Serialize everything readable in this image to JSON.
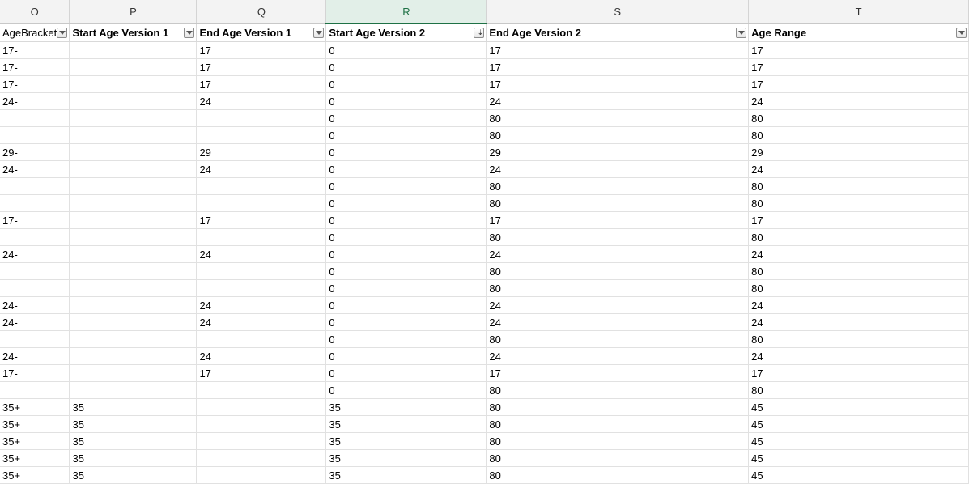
{
  "columns": [
    {
      "letter": "O",
      "header": "AgeBracket",
      "bold": false,
      "filter": "dropdown",
      "active": false
    },
    {
      "letter": "P",
      "header": "Start Age Version 1",
      "bold": true,
      "filter": "dropdown",
      "active": false
    },
    {
      "letter": "Q",
      "header": "End Age Version 1",
      "bold": true,
      "filter": "dropdown",
      "active": false
    },
    {
      "letter": "R",
      "header": "Start Age Version 2",
      "bold": true,
      "filter": "sort-descending",
      "active": true
    },
    {
      "letter": "S",
      "header": "End Age Version 2",
      "bold": true,
      "filter": "dropdown",
      "active": false
    },
    {
      "letter": "T",
      "header": "Age Range",
      "bold": true,
      "filter": "dropdown",
      "active": false
    }
  ],
  "rows": [
    [
      "17-",
      "",
      "17",
      "0",
      "17",
      "17"
    ],
    [
      "17-",
      "",
      "17",
      "0",
      "17",
      "17"
    ],
    [
      "17-",
      "",
      "17",
      "0",
      "17",
      "17"
    ],
    [
      "24-",
      "",
      "24",
      "0",
      "24",
      "24"
    ],
    [
      "",
      "",
      "",
      "0",
      "80",
      "80"
    ],
    [
      "",
      "",
      "",
      "0",
      "80",
      "80"
    ],
    [
      "29-",
      "",
      "29",
      "0",
      "29",
      "29"
    ],
    [
      "24-",
      "",
      "24",
      "0",
      "24",
      "24"
    ],
    [
      "",
      "",
      "",
      "0",
      "80",
      "80"
    ],
    [
      "",
      "",
      "",
      "0",
      "80",
      "80"
    ],
    [
      "17-",
      "",
      "17",
      "0",
      "17",
      "17"
    ],
    [
      "",
      "",
      "",
      "0",
      "80",
      "80"
    ],
    [
      "24-",
      "",
      "24",
      "0",
      "24",
      "24"
    ],
    [
      "",
      "",
      "",
      "0",
      "80",
      "80"
    ],
    [
      "",
      "",
      "",
      "0",
      "80",
      "80"
    ],
    [
      "24-",
      "",
      "24",
      "0",
      "24",
      "24"
    ],
    [
      "24-",
      "",
      "24",
      "0",
      "24",
      "24"
    ],
    [
      "",
      "",
      "",
      "0",
      "80",
      "80"
    ],
    [
      "24-",
      "",
      "24",
      "0",
      "24",
      "24"
    ],
    [
      "17-",
      "",
      "17",
      "0",
      "17",
      "17"
    ],
    [
      "",
      "",
      "",
      "0",
      "80",
      "80"
    ],
    [
      "35+",
      "35",
      "",
      "35",
      "80",
      "45"
    ],
    [
      "35+",
      "35",
      "",
      "35",
      "80",
      "45"
    ],
    [
      "35+",
      "35",
      "",
      "35",
      "80",
      "45"
    ],
    [
      "35+",
      "35",
      "",
      "35",
      "80",
      "45"
    ],
    [
      "35+",
      "35",
      "",
      "35",
      "80",
      "45"
    ]
  ],
  "colors": {
    "active_header": "#1e7145",
    "gridline": "#e1e1e1"
  }
}
